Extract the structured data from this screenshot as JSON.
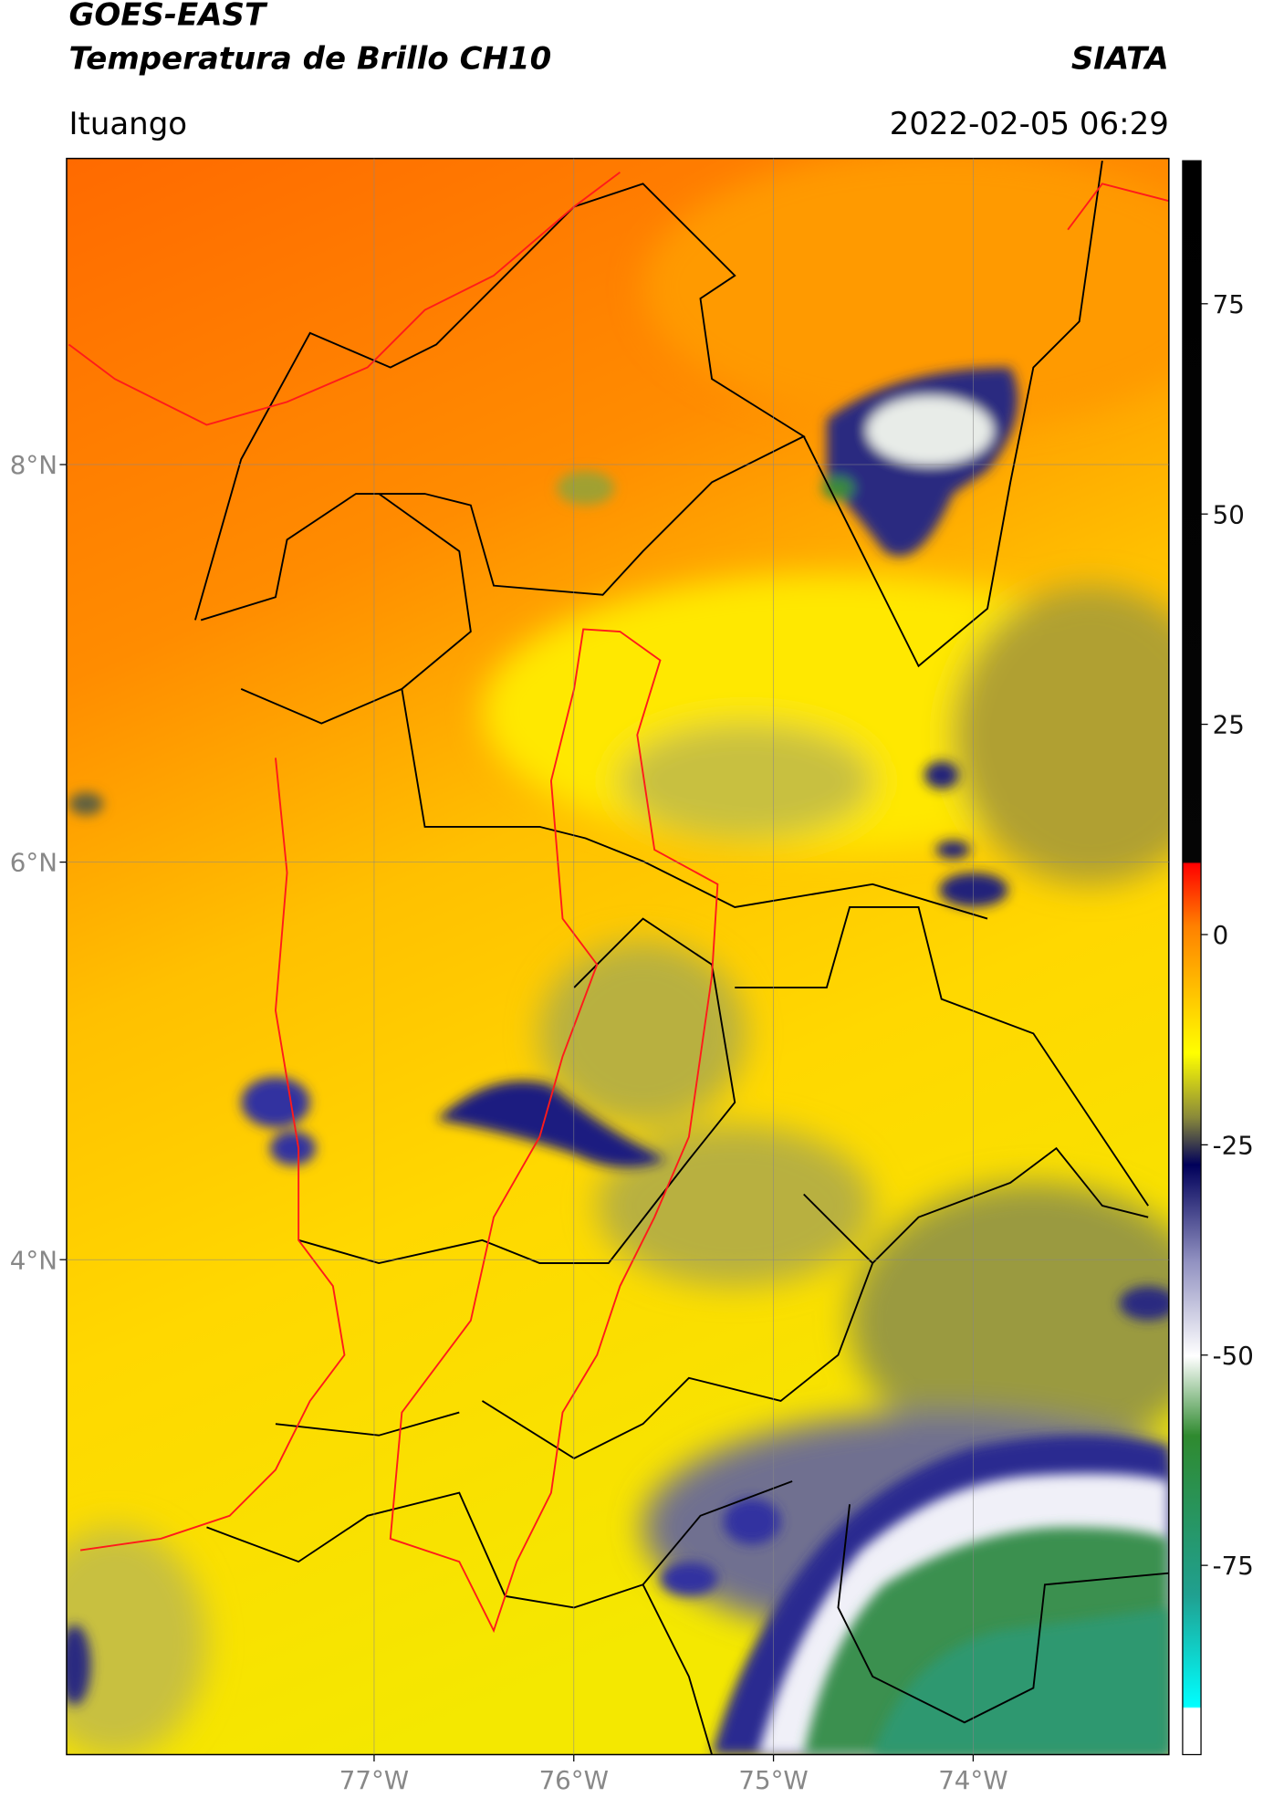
{
  "header": {
    "title": "GOES-EAST",
    "subtitle": "Temperatura de Brillo CH10",
    "organization": "SIATA",
    "location": "Ituango",
    "datetime": "2022-02-05 06:29"
  },
  "map": {
    "lonlim": [
      -78.54,
      -73.02
    ],
    "latlim": [
      1.51,
      9.54
    ],
    "lon_ticks": [
      {
        "value": -77,
        "label": "77°W"
      },
      {
        "value": -76,
        "label": "76°W"
      },
      {
        "value": -75,
        "label": "75°W"
      },
      {
        "value": -74,
        "label": "74°W"
      }
    ],
    "lat_ticks": [
      {
        "value": 8,
        "label": "8°N"
      },
      {
        "value": 6,
        "label": "6°N"
      },
      {
        "value": 4,
        "label": "4°N"
      }
    ],
    "grid": true
  },
  "colorbar": {
    "lim": [
      -97.5,
      92
    ],
    "ticks": [
      75,
      50,
      25,
      0,
      -25,
      -50,
      -75
    ]
  }
}
